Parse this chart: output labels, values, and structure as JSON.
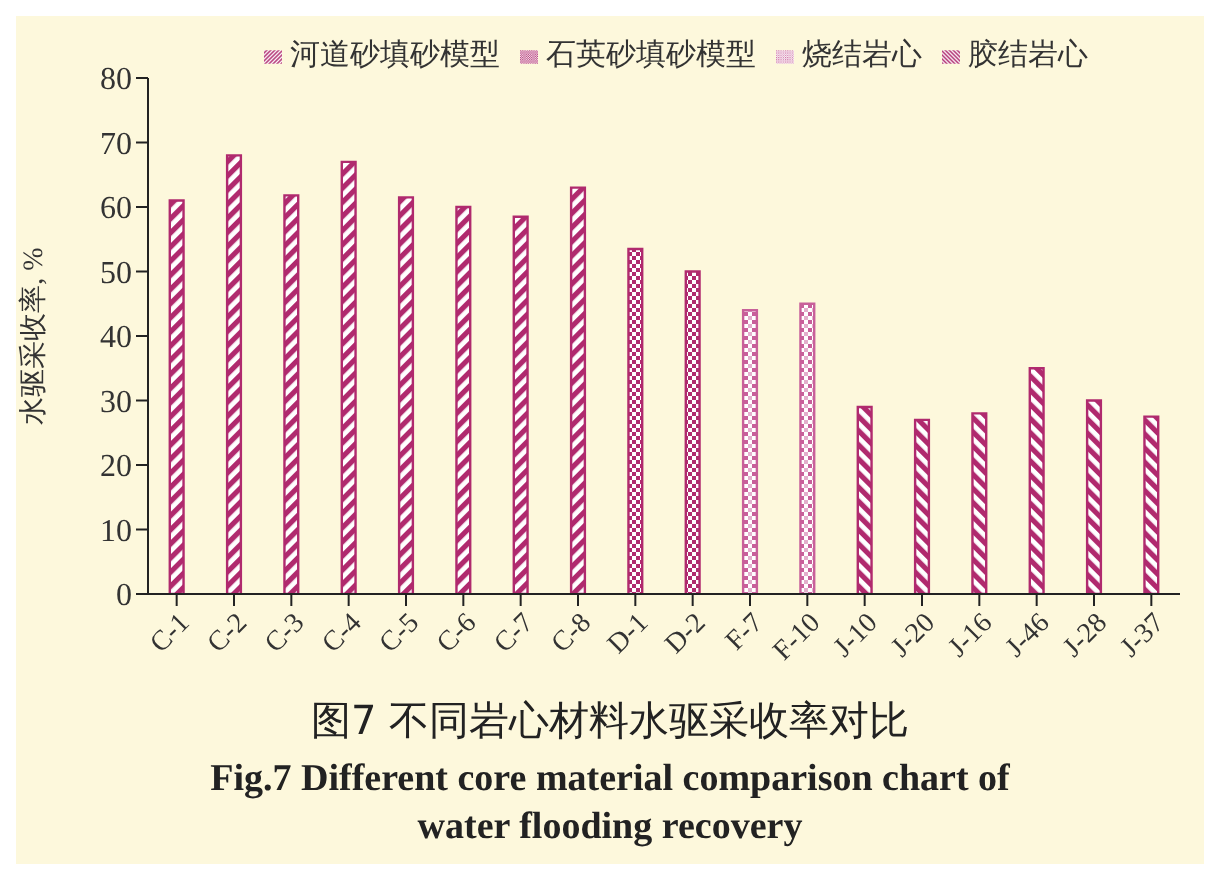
{
  "chart_data": {
    "type": "bar",
    "title": "图7  不同岩心材料水驱采收率对比",
    "subtitle": "Fig.7  Different core material comparison chart of water flooding recovery",
    "ylabel": "水驱采收率, %",
    "categories": [
      "C-1",
      "C-2",
      "C-3",
      "C-4",
      "C-5",
      "C-6",
      "C-7",
      "C-8",
      "D-1",
      "D-2",
      "F-7",
      "F-10",
      "J-10",
      "J-20",
      "J-16",
      "J-46",
      "J-28",
      "J-37"
    ],
    "series": [
      {
        "name": "河道砂填砂模型",
        "color": "#b02a6e",
        "values": [
          61,
          68,
          61.8,
          67,
          61.5,
          60,
          58.5,
          63,
          null,
          null,
          null,
          null,
          null,
          null,
          null,
          null,
          null,
          null
        ]
      },
      {
        "name": "石英砂填砂模型",
        "color": "#b02a6e",
        "values": [
          null,
          null,
          null,
          null,
          null,
          null,
          null,
          null,
          53.5,
          50,
          null,
          null,
          null,
          null,
          null,
          null,
          null,
          null
        ]
      },
      {
        "name": "烧结岩心",
        "color": "#c8609a",
        "values": [
          null,
          null,
          null,
          null,
          null,
          null,
          null,
          null,
          null,
          null,
          44,
          45,
          null,
          null,
          null,
          null,
          null,
          null
        ]
      },
      {
        "name": "胶结岩心",
        "color": "#b02a6e",
        "values": [
          null,
          null,
          null,
          null,
          null,
          null,
          null,
          null,
          null,
          null,
          null,
          null,
          29,
          27,
          28,
          35,
          30,
          27.5
        ]
      }
    ],
    "ylim": [
      0,
      80
    ],
    "yticks": [
      0,
      10,
      20,
      30,
      40,
      50,
      60,
      70,
      80
    ],
    "grid": false,
    "legend": "top"
  }
}
